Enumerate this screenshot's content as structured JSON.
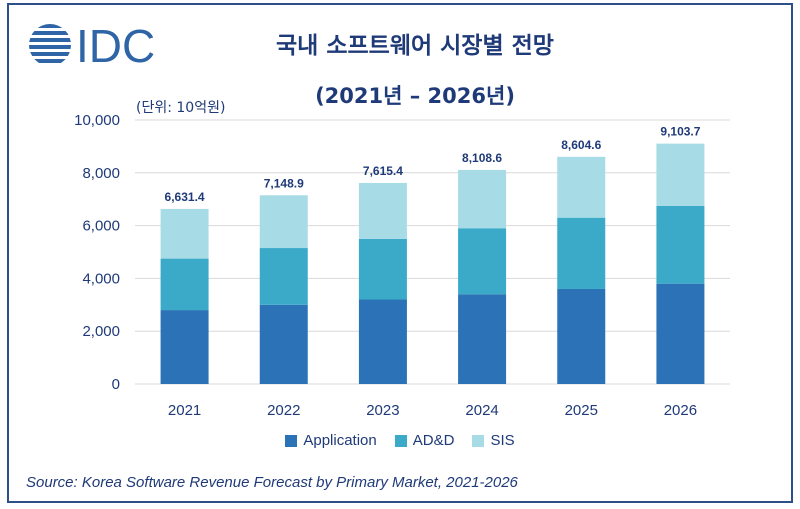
{
  "logo": {
    "text": "IDC",
    "icon": "idc-globe-logo",
    "color": "#2f64a6"
  },
  "title": "국내 소프트웨어 시장별 전망",
  "subtitle": "(2021년 – 2026년)",
  "unit_label": "(단위: 10억원)",
  "source": "Source: Korea Software Revenue Forecast by Primary Market, 2021-2026",
  "colors": {
    "Application": "#2b73b6",
    "AD&D": "#3aaac8",
    "SIS": "#a7dbe5",
    "text": "#1f3a78",
    "grid": "#d9d9d9"
  },
  "chart_data": {
    "type": "bar",
    "stacked": true,
    "categories": [
      "2021",
      "2022",
      "2023",
      "2024",
      "2025",
      "2026"
    ],
    "series": [
      {
        "name": "Application",
        "values": [
          2800,
          3000,
          3200,
          3400,
          3600,
          3800
        ]
      },
      {
        "name": "AD&D",
        "values": [
          1950,
          2150,
          2300,
          2500,
          2700,
          2950
        ]
      },
      {
        "name": "SIS",
        "values": [
          1881.4,
          1998.9,
          2115.4,
          2208.6,
          2304.6,
          2353.7
        ]
      }
    ],
    "totals": [
      "6,631.4",
      "7,148.9",
      "7,615.4",
      "8,108.6",
      "8,604.6",
      "9,103.7"
    ],
    "yticks": [
      "0",
      "2,000",
      "4,000",
      "6,000",
      "8,000",
      "10,000"
    ],
    "ylim": [
      0,
      10000
    ],
    "grid": true,
    "legend_position": "bottom"
  }
}
